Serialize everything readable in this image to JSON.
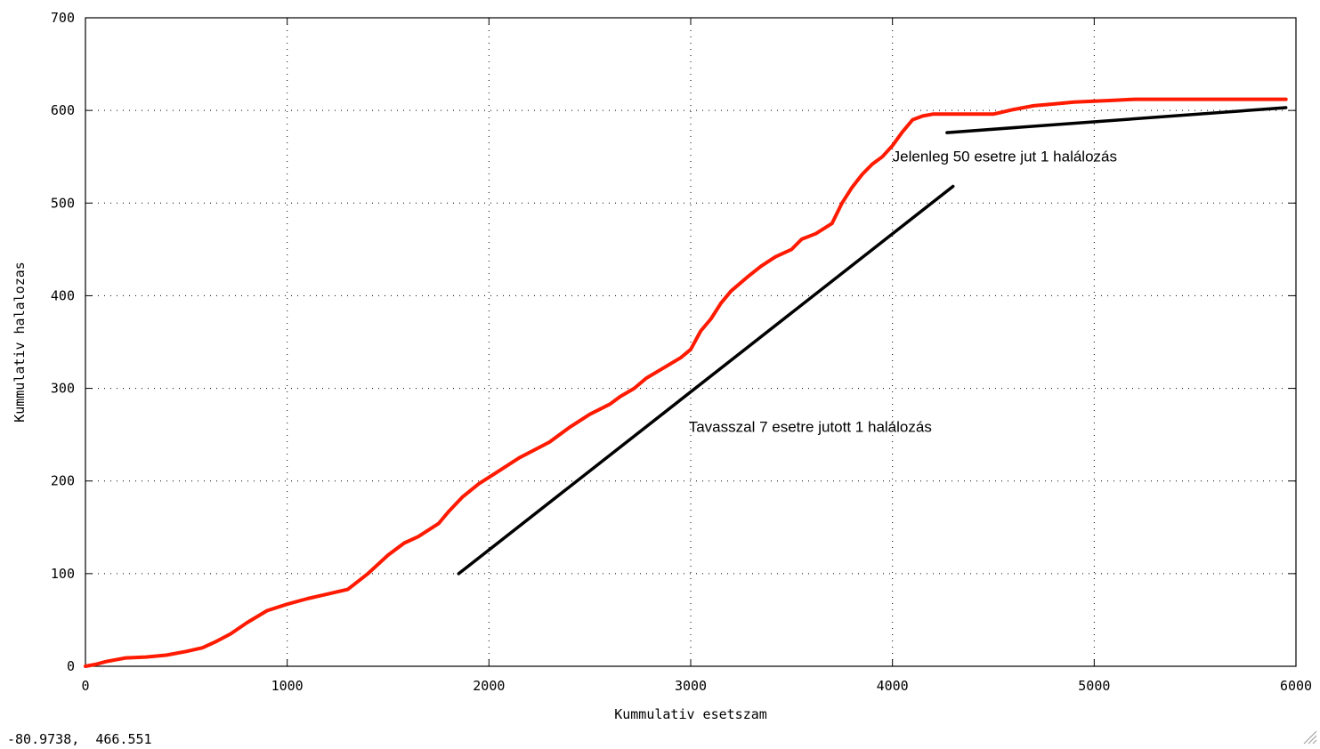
{
  "chart_data": {
    "type": "line",
    "title": "",
    "xlabel": "Kummulativ esetszam",
    "ylabel": "Kummulativ halalozas",
    "xlim": [
      0,
      6000
    ],
    "ylim": [
      0,
      700
    ],
    "x_ticks": [
      0,
      1000,
      2000,
      3000,
      4000,
      5000,
      6000
    ],
    "x_tick_labels": [
      "0",
      "1000",
      "2000",
      "3000",
      "4000",
      "5000",
      "6000"
    ],
    "y_ticks": [
      0,
      100,
      200,
      300,
      400,
      500,
      600,
      700
    ],
    "y_tick_labels": [
      "0",
      "100",
      "200",
      "300",
      "400",
      "500",
      "600",
      "700"
    ],
    "grid": true,
    "series": [
      {
        "color": "#ff1a00",
        "x": [
          0,
          50,
          100,
          150,
          200,
          300,
          400,
          500,
          580,
          650,
          720,
          800,
          900,
          1000,
          1100,
          1200,
          1300,
          1400,
          1500,
          1580,
          1650,
          1750,
          1800,
          1870,
          1950,
          2050,
          2150,
          2300,
          2400,
          2500,
          2600,
          2650,
          2720,
          2780,
          2850,
          2950,
          3000,
          3050,
          3100,
          3150,
          3200,
          3280,
          3350,
          3420,
          3500,
          3550,
          3620,
          3700,
          3750,
          3800,
          3850,
          3900,
          3950,
          4000,
          4050,
          4100,
          4150,
          4200,
          4250,
          4300,
          4350,
          4500,
          4600,
          4700,
          4800,
          4900,
          5000,
          5100,
          5200,
          5300,
          5400,
          5500,
          5600,
          5700,
          5800,
          5950
        ],
        "y": [
          0,
          2,
          5,
          7,
          9,
          10,
          12,
          16,
          20,
          27,
          35,
          47,
          60,
          67,
          73,
          78,
          83,
          100,
          120,
          133,
          140,
          154,
          167,
          183,
          197,
          211,
          225,
          242,
          258,
          272,
          283,
          291,
          300,
          311,
          320,
          333,
          342,
          362,
          375,
          392,
          405,
          420,
          432,
          442,
          450,
          461,
          467,
          478,
          500,
          517,
          531,
          542,
          550,
          562,
          577,
          590,
          594,
          596,
          596,
          596,
          596,
          596,
          601,
          605,
          607,
          609,
          610,
          611,
          612,
          612,
          612,
          612,
          612,
          612,
          612,
          612
        ]
      },
      {
        "color": "#000000",
        "x": [
          1850,
          4300
        ],
        "y": [
          100,
          518
        ]
      },
      {
        "color": "#000000",
        "x": [
          4270,
          5950
        ],
        "y": [
          576,
          603
        ]
      }
    ],
    "annotations": [
      {
        "text": "Jelenleg 50 esetre jut 1 halálozás",
        "x": 4000,
        "y": 545
      },
      {
        "text": "Tavasszal 7 esetre jutott 1 halálozás",
        "x": 2990,
        "y": 253
      }
    ]
  },
  "status": {
    "coordinates": "-80.9738,  466.551"
  }
}
